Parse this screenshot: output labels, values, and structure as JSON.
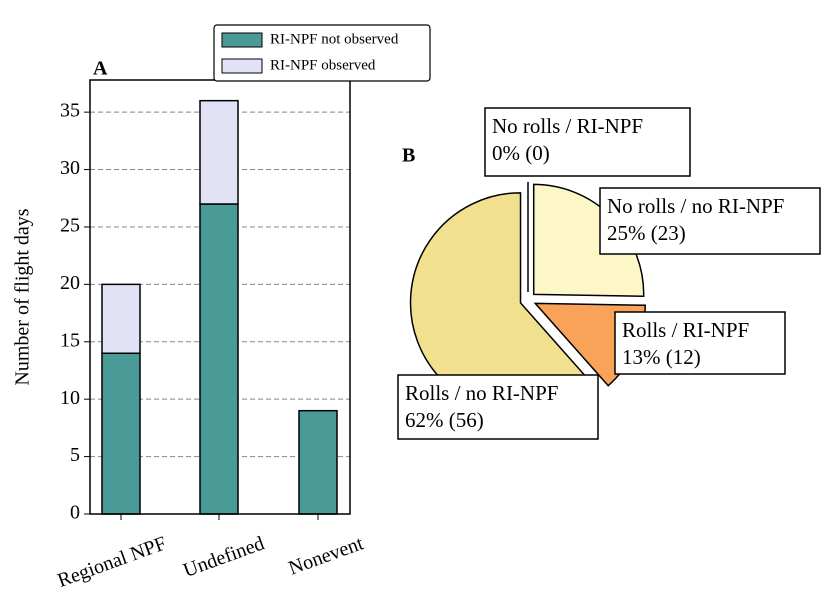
{
  "chart_data": [
    {
      "type": "bar",
      "panel_label": "A",
      "ylabel": "Number of flight days",
      "categories": [
        "Regional NPF",
        "Undefined",
        "Nonevent"
      ],
      "series": [
        {
          "name": "RI-NPF not observed",
          "color": "#4a9a98",
          "values": [
            14,
            27,
            9
          ]
        },
        {
          "name": "RI-NPF observed",
          "color": "#e2e2f6",
          "values": [
            6,
            9,
            0
          ]
        }
      ],
      "stacked": true,
      "ylim": [
        0,
        37.8
      ],
      "yticks": [
        0,
        5,
        10,
        15,
        20,
        25,
        30,
        35
      ],
      "grid": true
    },
    {
      "type": "pie",
      "panel_label": "B",
      "categories": [
        "No rolls / RI-NPF",
        "No rolls / no RI-NPF",
        "Rolls / RI-NPF",
        "Rolls / no RI-NPF"
      ],
      "values": [
        0,
        23,
        12,
        56
      ],
      "value_labels": [
        "0% (0)",
        "25% (23)",
        "13% (12)",
        "62% (56)"
      ],
      "colors": [
        "#f7f0b0",
        "#fdf7c8",
        "#f9a25a",
        "#f1e18e"
      ]
    }
  ]
}
